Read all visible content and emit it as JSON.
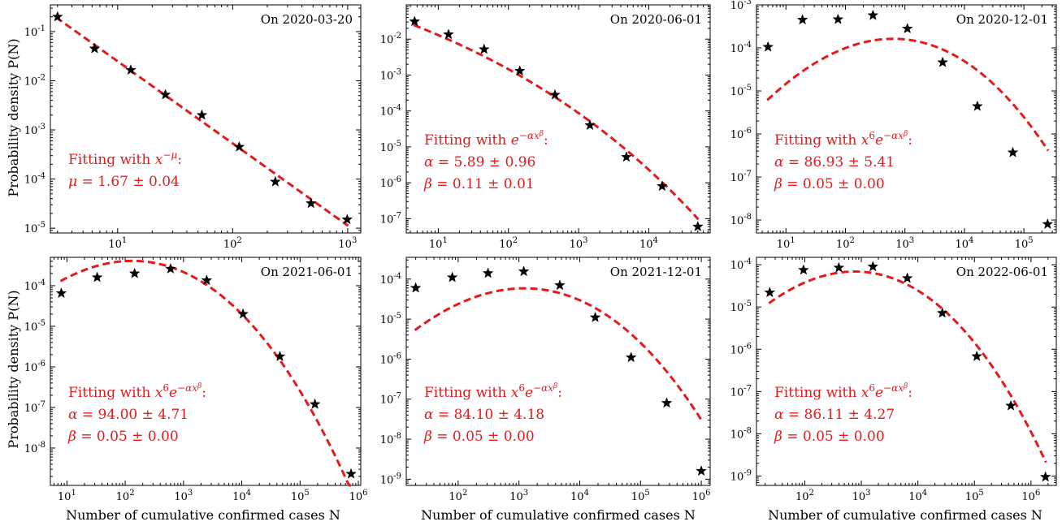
{
  "figure": {
    "ylabel": "Probability density P(N)",
    "xlabel": "Number of cumulative confirmed cases N",
    "colors": {
      "fit_line": "#e41a1c",
      "markers": "#000000",
      "text_fit": "#e41a1c"
    }
  },
  "chart_data": [
    {
      "type": "scatter",
      "title": "On 2020-03-20",
      "x_scale": "log",
      "y_scale": "log",
      "xlim": [
        2.6,
        1300
      ],
      "ylim": [
        8e-06,
        0.35
      ],
      "xticks": [
        10,
        100,
        1000
      ],
      "yticks": [
        1e-05,
        0.0001,
        0.001,
        0.01,
        0.1
      ],
      "points": {
        "x": [
          3,
          6.3,
          13,
          26,
          54,
          114,
          235,
          480,
          990
        ],
        "y": [
          0.2,
          0.045,
          0.0165,
          0.0052,
          0.002,
          0.00045,
          8.8e-05,
          3.2e-05,
          1.5e-05
        ]
      },
      "fit": {
        "model": "power",
        "mu": 1.67,
        "amp": 0.2,
        "x0": 3
      },
      "annotation": [
        "Fitting with x^(−μ):",
        "μ = 1.67 ± 0.04"
      ]
    },
    {
      "type": "scatter",
      "title": "On 2020-06-01",
      "x_scale": "log",
      "y_scale": "log",
      "xlim": [
        3.5,
        75000
      ],
      "ylim": [
        4e-08,
        0.09
      ],
      "xticks": [
        10,
        100,
        1000,
        10000
      ],
      "yticks": [
        1e-07,
        1e-06,
        1e-05,
        0.0001,
        0.001,
        0.01
      ],
      "points": {
        "x": [
          4.6,
          14,
          45,
          145,
          460,
          1450,
          4800,
          15500,
          50000
        ],
        "y": [
          0.031,
          0.0135,
          0.0052,
          0.0013,
          0.00028,
          4e-05,
          5.2e-06,
          8e-07,
          6e-08
        ]
      },
      "fit": {
        "model": "stretched",
        "alpha": 5.89,
        "beta": 0.11
      },
      "annotation": [
        "Fitting with e^(−αx^β):",
        "α = 5.89 ± 0.96",
        "β = 0.11 ± 0.01"
      ]
    },
    {
      "type": "scatter",
      "title": "On 2020-12-01",
      "x_scale": "log",
      "y_scale": "log",
      "xlim": [
        3.2,
        350000
      ],
      "ylim": [
        5e-09,
        0.001
      ],
      "xticks": [
        10,
        100,
        1000,
        10000,
        100000
      ],
      "yticks": [
        1e-08,
        1e-07,
        1e-06,
        1e-05,
        0.0001,
        0.001
      ],
      "points": {
        "x": [
          5,
          19,
          75,
          290,
          1100,
          4300,
          16500,
          65000,
          250000
        ],
        "y": [
          0.000105,
          0.00045,
          0.00046,
          0.00057,
          0.00028,
          4.6e-05,
          4.4e-06,
          3.7e-07,
          8e-09
        ]
      },
      "fit": {
        "model": "x6stretched",
        "alpha": 86.93,
        "beta": 0.05
      },
      "annotation": [
        "Fitting with x^6 e^(−αx^β):",
        "α = 86.93 ± 5.41",
        "β = 0.05 ± 0.00"
      ]
    },
    {
      "type": "scatter",
      "title": "On 2021-06-01",
      "x_scale": "log",
      "y_scale": "log",
      "xlim": [
        5.2,
        1100000
      ],
      "ylim": [
        1.2e-09,
        0.0005
      ],
      "xticks": [
        10,
        100,
        1000,
        10000,
        100000,
        1000000
      ],
      "yticks": [
        1e-08,
        1e-07,
        1e-06,
        1e-05,
        0.0001
      ],
      "points": {
        "x": [
          8,
          33,
          145,
          600,
          2500,
          10500,
          45000,
          180000,
          750000
        ],
        "y": [
          6.5e-05,
          0.00016,
          0.0002,
          0.00026,
          0.000135,
          2e-05,
          1.8e-06,
          1.2e-07,
          2.3e-09
        ]
      },
      "fit": {
        "model": "x6stretched",
        "alpha": 94.0,
        "beta": 0.05
      },
      "annotation": [
        "Fitting with x^6 e^(−αx^β):",
        "α = 94.00 ± 4.71",
        "β = 0.05 ± 0.00"
      ]
    },
    {
      "type": "scatter",
      "title": "On 2021-12-01",
      "x_scale": "log",
      "y_scale": "log",
      "xlim": [
        14,
        1400000
      ],
      "ylim": [
        7e-10,
        0.00035
      ],
      "xticks": [
        100,
        1000,
        10000,
        100000,
        1000000
      ],
      "yticks": [
        1e-09,
        1e-08,
        1e-07,
        1e-06,
        1e-05,
        0.0001
      ],
      "points": {
        "x": [
          20,
          80,
          310,
          1200,
          4700,
          18000,
          70000,
          270000,
          1000000
        ],
        "y": [
          6e-05,
          0.00011,
          0.00014,
          0.000155,
          7e-05,
          1.1e-05,
          1.1e-06,
          8e-08,
          1.6e-09
        ]
      },
      "fit": {
        "model": "x6stretched",
        "alpha": 84.1,
        "beta": 0.05
      },
      "annotation": [
        "Fitting with x^6 e^(−αx^β):",
        "α = 84.10 ± 4.18",
        "β = 0.05 ± 0.00"
      ]
    },
    {
      "type": "scatter",
      "title": "On 2022-06-01",
      "x_scale": "log",
      "y_scale": "log",
      "xlim": [
        14,
        2800000
      ],
      "ylim": [
        6e-10,
        0.00015
      ],
      "xticks": [
        100,
        1000,
        10000,
        100000,
        1000000
      ],
      "yticks": [
        1e-09,
        1e-08,
        1e-07,
        1e-06,
        1e-05,
        0.0001
      ],
      "points": {
        "x": [
          24,
          95,
          400,
          1600,
          6500,
          27000,
          110000,
          440000,
          1800000
        ],
        "y": [
          2.2e-05,
          7.5e-05,
          8.5e-05,
          9e-05,
          4.8e-05,
          7.2e-06,
          6.8e-07,
          4.6e-08,
          9.5e-10
        ]
      },
      "fit": {
        "model": "x6stretched",
        "alpha": 86.11,
        "beta": 0.05
      },
      "annotation": [
        "Fitting with x^6 e^(−αx^β):",
        "α = 86.11 ± 4.27",
        "β = 0.05 ± 0.00"
      ]
    }
  ]
}
